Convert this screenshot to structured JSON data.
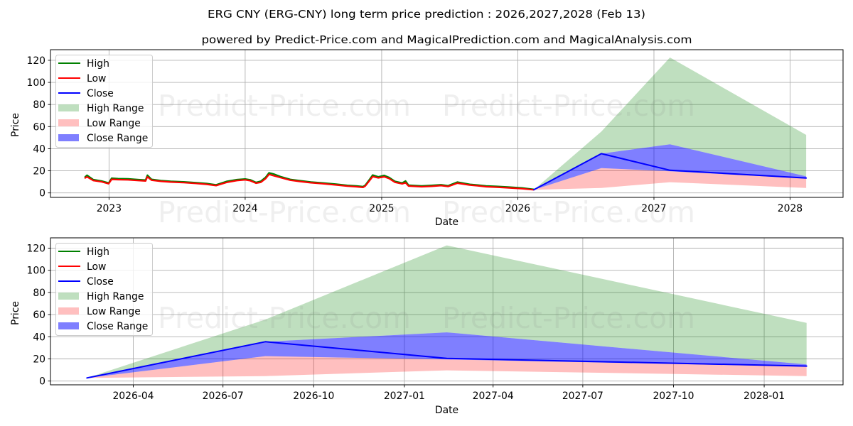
{
  "watermark": {
    "text": "Predict-Price.com"
  },
  "chart_data": [
    {
      "type": "line",
      "panel": "top",
      "title": "ERG CNY (ERG-CNY) long term price prediction : 2026,2027,2028 (Feb 13)",
      "subtitle": "powered by Predict-Price.com and MagicalPrediction.com and MagicalAnalysis.com",
      "xlabel": "Date",
      "ylabel": "Price",
      "xlim": [
        "2022-07-28",
        "2028-05-22"
      ],
      "ylim": [
        -4.05,
        129.6
      ],
      "grid": true,
      "xticks": [
        {
          "label": "2023",
          "date": "2023-01-01"
        },
        {
          "label": "2024",
          "date": "2024-01-01"
        },
        {
          "label": "2025",
          "date": "2025-01-01"
        },
        {
          "label": "2026",
          "date": "2026-01-01"
        },
        {
          "label": "2027",
          "date": "2027-01-01"
        },
        {
          "label": "2028",
          "date": "2028-01-01"
        }
      ],
      "yticks": [
        0,
        20,
        40,
        60,
        80,
        100,
        120
      ],
      "legend": {
        "position": "upper left",
        "entries": [
          {
            "label": "High",
            "kind": "line",
            "color": "#008000"
          },
          {
            "label": "Low",
            "kind": "line",
            "color": "#ff0000"
          },
          {
            "label": "Close",
            "kind": "line",
            "color": "#0000ff"
          },
          {
            "label": "High Range",
            "kind": "patch",
            "color": "#008000",
            "alpha": 0.25
          },
          {
            "label": "Low Range",
            "kind": "patch",
            "color": "#ff0000",
            "alpha": 0.25
          },
          {
            "label": "Close Range",
            "kind": "patch",
            "color": "#0000ff",
            "alpha": 0.5
          }
        ]
      },
      "series": [
        {
          "name": "High Range",
          "type": "area",
          "color": "#008000",
          "alpha": 0.25,
          "x": [
            "2026-02-13",
            "2026-08-13",
            "2027-02-13",
            "2028-02-13"
          ],
          "upper": [
            2.8,
            55.5,
            122.5,
            52.5
          ],
          "lower": [
            2.8,
            35.5,
            44,
            15
          ]
        },
        {
          "name": "Low Range",
          "type": "area",
          "color": "#ff0000",
          "alpha": 0.25,
          "x": [
            "2026-02-13",
            "2026-08-13",
            "2027-02-13",
            "2028-02-13"
          ],
          "upper": [
            2.8,
            22.5,
            19.5,
            13
          ],
          "lower": [
            2.8,
            4.5,
            9.7,
            4.5
          ]
        },
        {
          "name": "Close Range",
          "type": "area",
          "color": "#0000ff",
          "alpha": 0.5,
          "x": [
            "2026-02-13",
            "2026-08-13",
            "2027-02-13",
            "2028-02-13"
          ],
          "upper": [
            2.8,
            35.5,
            44,
            15
          ],
          "lower": [
            2.8,
            22.5,
            19.5,
            13
          ]
        },
        {
          "name": "High",
          "type": "line",
          "color": "#008000",
          "width": 2.2,
          "x": [
            "2022-10-29",
            "2022-11-03",
            "2022-11-20",
            "2022-12-12",
            "2022-12-31",
            "2023-01-08",
            "2023-01-25",
            "2023-02-21",
            "2023-03-21",
            "2023-04-09",
            "2023-04-14",
            "2023-04-25",
            "2023-05-20",
            "2023-06-15",
            "2023-07-20",
            "2023-08-20",
            "2023-09-20",
            "2023-10-15",
            "2023-11-12",
            "2023-12-10",
            "2024-01-01",
            "2024-01-15",
            "2024-01-30",
            "2024-02-12",
            "2024-02-25",
            "2024-03-05",
            "2024-03-18",
            "2024-04-07",
            "2024-05-01",
            "2024-05-25",
            "2024-06-25",
            "2024-07-28",
            "2024-09-01",
            "2024-10-01",
            "2024-10-25",
            "2024-11-12",
            "2024-11-18",
            "2024-11-28",
            "2024-12-08",
            "2024-12-23",
            "2025-01-08",
            "2025-01-21",
            "2025-02-06",
            "2025-02-25",
            "2025-03-06",
            "2025-03-14",
            "2025-04-18",
            "2025-05-15",
            "2025-06-09",
            "2025-06-28",
            "2025-07-23",
            "2025-08-25",
            "2025-09-15",
            "2025-10-08",
            "2025-11-05",
            "2025-12-05",
            "2026-01-13",
            "2026-02-13"
          ],
          "y": [
            14.5,
            16.0,
            12.0,
            10.8,
            9.0,
            13.3,
            12.9,
            12.7,
            12.0,
            11.6,
            16.0,
            12.3,
            11.2,
            10.5,
            10.0,
            9.3,
            8.5,
            7.3,
            10.4,
            12.0,
            12.6,
            11.8,
            9.5,
            10.6,
            14.2,
            18.2,
            17.0,
            14.5,
            12.2,
            11.1,
            9.9,
            9.0,
            7.9,
            6.8,
            6.3,
            5.7,
            7.0,
            11.5,
            16.2,
            14.5,
            15.8,
            14.0,
            10.4,
            9.0,
            10.8,
            7.0,
            6.3,
            6.8,
            7.4,
            6.5,
            9.8,
            7.8,
            7.1,
            6.3,
            5.9,
            5.3,
            4.5,
            3.2
          ]
        },
        {
          "name": "Low",
          "type": "line",
          "color": "#ff0000",
          "width": 2.2,
          "x": [
            "2022-10-29",
            "2022-11-03",
            "2022-11-20",
            "2022-12-12",
            "2022-12-31",
            "2023-01-08",
            "2023-01-25",
            "2023-02-21",
            "2023-03-21",
            "2023-04-09",
            "2023-04-14",
            "2023-04-25",
            "2023-05-20",
            "2023-06-15",
            "2023-07-20",
            "2023-08-20",
            "2023-09-20",
            "2023-10-15",
            "2023-11-12",
            "2023-12-10",
            "2024-01-01",
            "2024-01-15",
            "2024-01-30",
            "2024-02-12",
            "2024-02-25",
            "2024-03-05",
            "2024-03-18",
            "2024-04-07",
            "2024-05-01",
            "2024-05-25",
            "2024-06-25",
            "2024-07-28",
            "2024-09-01",
            "2024-10-01",
            "2024-10-25",
            "2024-11-12",
            "2024-11-18",
            "2024-11-28",
            "2024-12-08",
            "2024-12-23",
            "2025-01-08",
            "2025-01-21",
            "2025-02-06",
            "2025-02-25",
            "2025-03-06",
            "2025-03-14",
            "2025-04-18",
            "2025-05-15",
            "2025-06-09",
            "2025-06-28",
            "2025-07-23",
            "2025-08-25",
            "2025-09-15",
            "2025-10-08",
            "2025-11-05",
            "2025-12-05",
            "2026-01-13",
            "2026-02-13"
          ],
          "y": [
            13.5,
            14.5,
            11.2,
            10.0,
            8.3,
            12.3,
            12.0,
            11.8,
            11.2,
            10.8,
            14.5,
            11.5,
            10.5,
            9.8,
            9.3,
            8.6,
            7.8,
            6.6,
            9.5,
            11.2,
            11.8,
            11.0,
            8.8,
            9.6,
            13.0,
            16.8,
            15.5,
            13.6,
            11.5,
            10.4,
            9.2,
            8.3,
            7.2,
            6.1,
            5.6,
            5.0,
            6.2,
            10.5,
            14.8,
            13.6,
            14.6,
            13.0,
            9.6,
            8.2,
            9.2,
            6.2,
            5.6,
            6.0,
            6.6,
            5.8,
            8.8,
            7.1,
            6.4,
            5.6,
            5.2,
            4.6,
            3.8,
            2.8
          ]
        },
        {
          "name": "Close",
          "type": "line",
          "color": "#0000ff",
          "width": 2,
          "x": [
            "2026-02-13",
            "2026-08-13",
            "2027-02-13",
            "2028-02-13"
          ],
          "y": [
            2.8,
            35.5,
            20.5,
            13.5
          ]
        }
      ]
    },
    {
      "type": "line",
      "panel": "bottom",
      "xlabel": "Date",
      "ylabel": "Price",
      "xlim": [
        "2026-01-07",
        "2028-03-21"
      ],
      "ylim": [
        -3.4,
        129.3
      ],
      "grid": true,
      "xticks": [
        {
          "label": "2026-04",
          "date": "2026-04-01"
        },
        {
          "label": "2026-07",
          "date": "2026-07-01"
        },
        {
          "label": "2026-10",
          "date": "2026-10-01"
        },
        {
          "label": "2027-01",
          "date": "2027-01-01"
        },
        {
          "label": "2027-04",
          "date": "2027-04-01"
        },
        {
          "label": "2027-07",
          "date": "2027-07-01"
        },
        {
          "label": "2027-10",
          "date": "2027-10-01"
        },
        {
          "label": "2028-01",
          "date": "2028-01-01"
        }
      ],
      "yticks": [
        0,
        20,
        40,
        60,
        80,
        100,
        120
      ],
      "legend": {
        "position": "upper left",
        "entries": [
          {
            "label": "High",
            "kind": "line",
            "color": "#008000"
          },
          {
            "label": "Low",
            "kind": "line",
            "color": "#ff0000"
          },
          {
            "label": "Close",
            "kind": "line",
            "color": "#0000ff"
          },
          {
            "label": "High Range",
            "kind": "patch",
            "color": "#008000",
            "alpha": 0.25
          },
          {
            "label": "Low Range",
            "kind": "patch",
            "color": "#ff0000",
            "alpha": 0.25
          },
          {
            "label": "Close Range",
            "kind": "patch",
            "color": "#0000ff",
            "alpha": 0.5
          }
        ]
      },
      "series": [
        {
          "name": "High Range",
          "type": "area",
          "color": "#008000",
          "alpha": 0.25,
          "x": [
            "2026-02-13",
            "2026-08-13",
            "2027-02-13",
            "2028-02-13"
          ],
          "upper": [
            2.8,
            55.5,
            122.5,
            52.5
          ],
          "lower": [
            2.8,
            35.5,
            44,
            15
          ]
        },
        {
          "name": "Low Range",
          "type": "area",
          "color": "#ff0000",
          "alpha": 0.25,
          "x": [
            "2026-02-13",
            "2026-08-13",
            "2027-02-13",
            "2028-02-13"
          ],
          "upper": [
            2.8,
            22.5,
            19.5,
            13
          ],
          "lower": [
            2.8,
            4.5,
            9.7,
            4.5
          ]
        },
        {
          "name": "Close Range",
          "type": "area",
          "color": "#0000ff",
          "alpha": 0.5,
          "x": [
            "2026-02-13",
            "2026-08-13",
            "2027-02-13",
            "2028-02-13"
          ],
          "upper": [
            2.8,
            35.5,
            44,
            15
          ],
          "lower": [
            2.8,
            22.5,
            19.5,
            13
          ]
        },
        {
          "name": "High",
          "type": "line",
          "color": "#008000",
          "x": [],
          "y": []
        },
        {
          "name": "Low",
          "type": "line",
          "color": "#ff0000",
          "x": [],
          "y": []
        },
        {
          "name": "Close",
          "type": "line",
          "color": "#0000ff",
          "width": 2,
          "x": [
            "2026-02-13",
            "2026-08-13",
            "2027-02-13",
            "2028-02-13"
          ],
          "y": [
            2.8,
            35.5,
            20.5,
            13.5
          ]
        }
      ]
    }
  ]
}
